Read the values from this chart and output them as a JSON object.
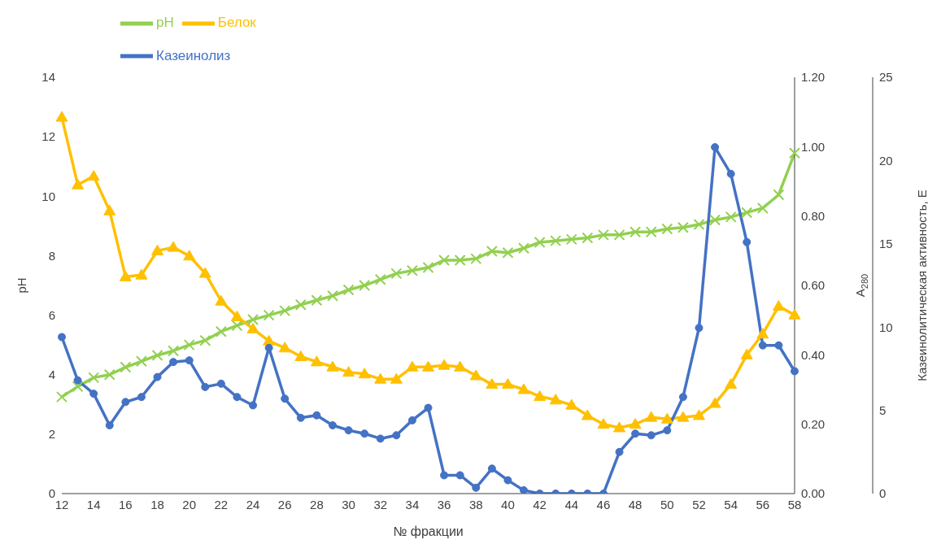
{
  "chart_data": {
    "type": "line",
    "xlabel": "№ фракции",
    "ylabel": "pH",
    "y2label": "A$_{280}$",
    "y3label": "Казеинолитическая активность, Е",
    "categories": [
      "12",
      null,
      "14",
      null,
      "16",
      null,
      "18",
      null,
      "20",
      null,
      "22",
      null,
      "24",
      null,
      "26",
      null,
      "28",
      null,
      "30",
      null,
      "32",
      null,
      "34",
      null,
      "36",
      null,
      "38",
      null,
      "40",
      null,
      "42",
      null,
      "44",
      null,
      "46",
      null,
      "48",
      null,
      "50",
      null,
      "52",
      null,
      "54",
      null,
      "56",
      null,
      "58"
    ],
    "ylim": [
      0,
      14
    ],
    "yticks": [
      0,
      2,
      4,
      6,
      8,
      10,
      12,
      14
    ],
    "y2lim": [
      0,
      1.2
    ],
    "y2ticks": [
      {
        "value": 0,
        "label": "0.00"
      },
      {
        "value": 0.2,
        "label": "0.20"
      },
      {
        "value": 0.4,
        "label": "0.40"
      },
      {
        "value": 0.6,
        "label": "0.60"
      },
      {
        "value": 0.8,
        "label": "0.80"
      },
      {
        "value": 1,
        "label": "1.00"
      },
      {
        "value": 1.2,
        "label": "1.20"
      }
    ],
    "y3lim": [
      0,
      25
    ],
    "y3ticks": [
      0,
      5,
      10,
      15,
      20,
      25
    ],
    "grid": false,
    "legend": "top",
    "series": [
      {
        "name": "pH",
        "color": "#92d050",
        "marker": "cross",
        "values": [
          3.25,
          3.6,
          3.9,
          4.0,
          4.25,
          4.45,
          4.65,
          4.8,
          5.0,
          5.15,
          5.45,
          5.65,
          5.85,
          6.0,
          6.15,
          6.35,
          6.5,
          6.65,
          6.85,
          7.0,
          7.2,
          7.4,
          7.5,
          7.6,
          7.85,
          7.85,
          7.9,
          8.15,
          8.1,
          8.25,
          8.45,
          8.5,
          8.55,
          8.6,
          8.7,
          8.7,
          8.8,
          8.8,
          8.9,
          8.95,
          9.05,
          9.2,
          9.3,
          9.45,
          9.6,
          10.05,
          11.45
        ]
      },
      {
        "name": "Белок",
        "color": "#ffc000",
        "marker": "triangle",
        "axis": "y2",
        "values": [
          1.085,
          0.89,
          0.915,
          0.815,
          0.625,
          0.63,
          0.7,
          0.71,
          0.685,
          0.635,
          0.555,
          0.51,
          0.475,
          0.44,
          0.42,
          0.395,
          0.38,
          0.365,
          0.35,
          0.345,
          0.33,
          0.33,
          0.365,
          0.365,
          0.37,
          0.365,
          0.34,
          0.315,
          0.315,
          0.3,
          0.28,
          0.27,
          0.255,
          0.225,
          0.2,
          0.19,
          0.2,
          0.22,
          0.215,
          0.22,
          0.225,
          0.26,
          0.315,
          0.4,
          0.46,
          0.54,
          0.515
        ]
      },
      {
        "name": "Казеинолиз",
        "color": "#4472c4",
        "marker": "circle",
        "axis": "y3",
        "values": [
          9.4,
          6.8,
          6.0,
          4.1,
          5.5,
          5.8,
          7.0,
          7.9,
          8.0,
          6.4,
          6.6,
          5.8,
          5.3,
          8.75,
          5.7,
          4.55,
          4.7,
          4.1,
          3.8,
          3.6,
          3.3,
          3.5,
          4.4,
          5.15,
          1.1,
          1.1,
          0.35,
          1.5,
          0.8,
          0.2,
          0,
          0,
          0,
          0,
          0,
          2.5,
          3.6,
          3.5,
          3.8,
          5.8,
          9.95,
          20.8,
          19.2,
          15.1,
          8.9,
          8.9,
          7.35
        ]
      }
    ]
  }
}
